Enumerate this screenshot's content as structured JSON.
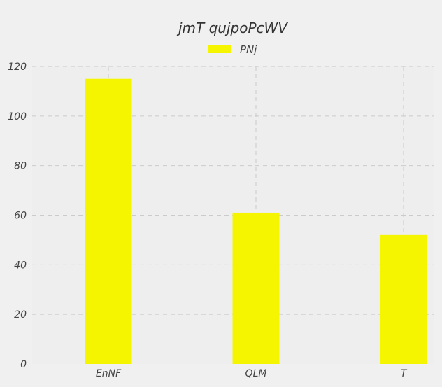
{
  "chart_data": {
    "type": "bar",
    "title": "jmT qujpoPcWV",
    "categories": [
      "EnNF",
      "QLM",
      "T"
    ],
    "series": [
      {
        "name": "PNj",
        "values": [
          115,
          61,
          52
        ],
        "color": "#f5f500"
      }
    ],
    "ylim": [
      0,
      120
    ],
    "yticks": [
      0,
      20,
      40,
      60,
      80,
      100,
      120
    ],
    "grid": true,
    "legend_position": "top-center",
    "background": "#eeeeee"
  }
}
